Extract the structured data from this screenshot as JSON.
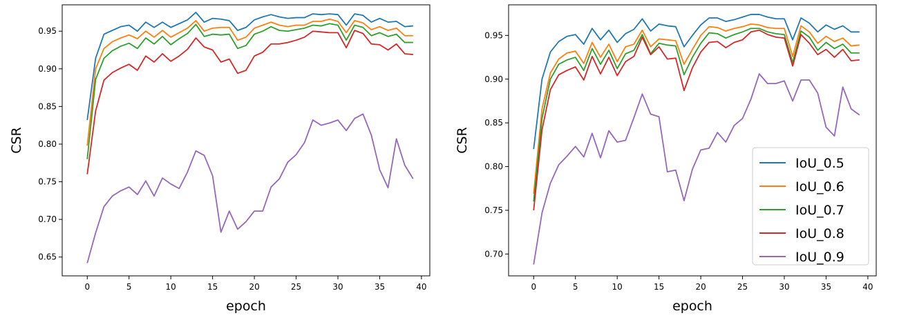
{
  "chart_data": [
    {
      "type": "line",
      "title": "",
      "xlabel": "epoch",
      "ylabel": "CSR",
      "xlim": [
        -3.0,
        41.0
      ],
      "ylim": [
        0.625,
        0.985
      ],
      "xticks": [
        0,
        5,
        10,
        15,
        20,
        25,
        30,
        35,
        40
      ],
      "xtick_labels": [
        "0",
        "5",
        "10",
        "15",
        "20",
        "25",
        "30",
        "35",
        "40"
      ],
      "yticks": [
        0.65,
        0.7,
        0.75,
        0.8,
        0.85,
        0.9,
        0.95
      ],
      "ytick_labels": [
        "0.65",
        "0.70",
        "0.75",
        "0.80",
        "0.85",
        "0.90",
        "0.95"
      ],
      "grid": false,
      "legend": null,
      "x": [
        0,
        1,
        2,
        3,
        4,
        5,
        6,
        7,
        8,
        9,
        10,
        11,
        12,
        13,
        14,
        15,
        16,
        17,
        18,
        19,
        20,
        21,
        22,
        23,
        24,
        25,
        26,
        27,
        28,
        29,
        30,
        31,
        32,
        33,
        34,
        35,
        36,
        37,
        38,
        39
      ],
      "series": [
        {
          "name": "IoU_0.5",
          "color": "#1f77b4",
          "values": [
            0.832,
            0.914,
            0.946,
            0.951,
            0.956,
            0.958,
            0.95,
            0.962,
            0.955,
            0.962,
            0.955,
            0.96,
            0.965,
            0.975,
            0.962,
            0.967,
            0.966,
            0.964,
            0.951,
            0.955,
            0.965,
            0.969,
            0.972,
            0.969,
            0.967,
            0.968,
            0.968,
            0.973,
            0.972,
            0.973,
            0.972,
            0.958,
            0.973,
            0.971,
            0.962,
            0.967,
            0.962,
            0.963,
            0.956,
            0.957
          ]
        },
        {
          "name": "IoU_0.6",
          "color": "#ff7f0e",
          "values": [
            0.798,
            0.9,
            0.927,
            0.936,
            0.941,
            0.945,
            0.94,
            0.95,
            0.942,
            0.951,
            0.942,
            0.948,
            0.954,
            0.964,
            0.95,
            0.954,
            0.955,
            0.955,
            0.938,
            0.942,
            0.954,
            0.958,
            0.962,
            0.958,
            0.956,
            0.958,
            0.958,
            0.963,
            0.963,
            0.966,
            0.963,
            0.948,
            0.964,
            0.961,
            0.952,
            0.956,
            0.951,
            0.954,
            0.944,
            0.944
          ]
        },
        {
          "name": "IoU_0.7",
          "color": "#2ca02c",
          "values": [
            0.78,
            0.886,
            0.914,
            0.924,
            0.93,
            0.934,
            0.927,
            0.941,
            0.933,
            0.943,
            0.932,
            0.94,
            0.947,
            0.959,
            0.943,
            0.946,
            0.945,
            0.946,
            0.927,
            0.931,
            0.946,
            0.95,
            0.956,
            0.951,
            0.95,
            0.952,
            0.954,
            0.958,
            0.957,
            0.96,
            0.958,
            0.938,
            0.958,
            0.955,
            0.944,
            0.948,
            0.943,
            0.946,
            0.935,
            0.935
          ]
        },
        {
          "name": "IoU_0.8",
          "color": "#d62728",
          "values": [
            0.76,
            0.844,
            0.885,
            0.895,
            0.901,
            0.906,
            0.898,
            0.917,
            0.909,
            0.92,
            0.91,
            0.917,
            0.926,
            0.941,
            0.929,
            0.925,
            0.909,
            0.913,
            0.894,
            0.898,
            0.917,
            0.922,
            0.933,
            0.933,
            0.935,
            0.938,
            0.942,
            0.95,
            0.949,
            0.948,
            0.948,
            0.928,
            0.951,
            0.947,
            0.933,
            0.932,
            0.925,
            0.933,
            0.92,
            0.919
          ]
        },
        {
          "name": "IoU_0.9",
          "color": "#9467bd",
          "values": [
            0.642,
            0.682,
            0.717,
            0.731,
            0.738,
            0.743,
            0.733,
            0.751,
            0.731,
            0.755,
            0.747,
            0.741,
            0.763,
            0.791,
            0.785,
            0.758,
            0.683,
            0.711,
            0.687,
            0.697,
            0.711,
            0.711,
            0.743,
            0.754,
            0.776,
            0.786,
            0.802,
            0.832,
            0.825,
            0.828,
            0.832,
            0.818,
            0.834,
            0.84,
            0.812,
            0.766,
            0.742,
            0.807,
            0.772,
            0.754
          ]
        }
      ]
    },
    {
      "type": "line",
      "title": "",
      "xlabel": "epoch",
      "ylabel": "CSR",
      "xlim": [
        -3.0,
        41.0
      ],
      "ylim": [
        0.675,
        0.985
      ],
      "xticks": [
        0,
        5,
        10,
        15,
        20,
        25,
        30,
        35,
        40
      ],
      "xtick_labels": [
        "0",
        "5",
        "10",
        "15",
        "20",
        "25",
        "30",
        "35",
        "40"
      ],
      "yticks": [
        0.7,
        0.75,
        0.8,
        0.85,
        0.9,
        0.95
      ],
      "ytick_labels": [
        "0.70",
        "0.75",
        "0.80",
        "0.85",
        "0.90",
        "0.95"
      ],
      "grid": false,
      "legend": "lower right",
      "x": [
        0,
        1,
        2,
        3,
        4,
        5,
        6,
        7,
        8,
        9,
        10,
        11,
        12,
        13,
        14,
        15,
        16,
        17,
        18,
        19,
        20,
        21,
        22,
        23,
        24,
        25,
        26,
        27,
        28,
        29,
        30,
        31,
        32,
        33,
        34,
        35,
        36,
        37,
        38,
        39
      ],
      "series": [
        {
          "name": "IoU_0.5",
          "color": "#1f77b4",
          "values": [
            0.82,
            0.9,
            0.931,
            0.943,
            0.949,
            0.951,
            0.94,
            0.958,
            0.945,
            0.956,
            0.942,
            0.952,
            0.957,
            0.969,
            0.955,
            0.963,
            0.961,
            0.96,
            0.937,
            0.95,
            0.962,
            0.97,
            0.97,
            0.966,
            0.968,
            0.971,
            0.974,
            0.974,
            0.971,
            0.969,
            0.969,
            0.945,
            0.97,
            0.964,
            0.954,
            0.962,
            0.957,
            0.961,
            0.954,
            0.954
          ]
        },
        {
          "name": "IoU_0.6",
          "color": "#ff7f0e",
          "values": [
            0.769,
            0.866,
            0.907,
            0.923,
            0.93,
            0.932,
            0.918,
            0.942,
            0.925,
            0.94,
            0.92,
            0.937,
            0.94,
            0.956,
            0.937,
            0.946,
            0.945,
            0.944,
            0.917,
            0.934,
            0.95,
            0.96,
            0.959,
            0.955,
            0.958,
            0.96,
            0.963,
            0.962,
            0.959,
            0.958,
            0.958,
            0.926,
            0.961,
            0.954,
            0.941,
            0.949,
            0.943,
            0.947,
            0.938,
            0.939
          ]
        },
        {
          "name": "IoU_0.7",
          "color": "#2ca02c",
          "values": [
            0.76,
            0.855,
            0.9,
            0.917,
            0.922,
            0.925,
            0.91,
            0.935,
            0.917,
            0.933,
            0.912,
            0.929,
            0.933,
            0.951,
            0.929,
            0.941,
            0.939,
            0.938,
            0.905,
            0.925,
            0.941,
            0.953,
            0.952,
            0.947,
            0.951,
            0.954,
            0.958,
            0.958,
            0.954,
            0.952,
            0.951,
            0.919,
            0.955,
            0.948,
            0.933,
            0.942,
            0.935,
            0.94,
            0.93,
            0.93
          ]
        },
        {
          "name": "IoU_0.8",
          "color": "#d62728",
          "values": [
            0.75,
            0.842,
            0.888,
            0.905,
            0.91,
            0.914,
            0.899,
            0.926,
            0.906,
            0.925,
            0.904,
            0.92,
            0.926,
            0.948,
            0.928,
            0.937,
            0.923,
            0.924,
            0.887,
            0.913,
            0.931,
            0.942,
            0.943,
            0.936,
            0.942,
            0.945,
            0.954,
            0.956,
            0.951,
            0.948,
            0.947,
            0.915,
            0.951,
            0.941,
            0.928,
            0.934,
            0.925,
            0.934,
            0.921,
            0.922
          ]
        },
        {
          "name": "IoU_0.9",
          "color": "#9467bd",
          "values": [
            0.688,
            0.747,
            0.781,
            0.802,
            0.812,
            0.823,
            0.811,
            0.838,
            0.81,
            0.841,
            0.828,
            0.83,
            0.856,
            0.883,
            0.86,
            0.857,
            0.794,
            0.796,
            0.761,
            0.797,
            0.819,
            0.821,
            0.839,
            0.828,
            0.847,
            0.855,
            0.877,
            0.906,
            0.895,
            0.895,
            0.898,
            0.875,
            0.899,
            0.899,
            0.884,
            0.845,
            0.835,
            0.891,
            0.866,
            0.859
          ]
        }
      ]
    }
  ]
}
